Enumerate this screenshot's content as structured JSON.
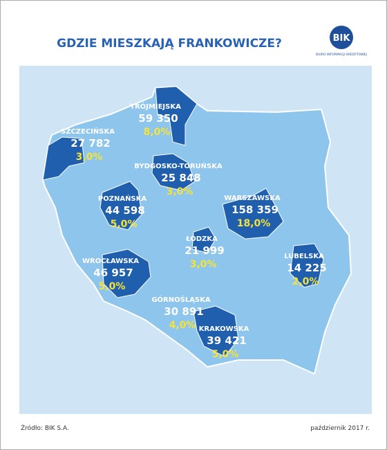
{
  "header": {
    "title": "GDZIE MIESZKAJĄ FRANKOWICZE?",
    "logo": "BIK",
    "logo_subtitle": "BIURO INFORMACJI KREDYTOWEJ"
  },
  "regions": [
    {
      "name": "TRÓJMIEJSKA",
      "count": "59 350",
      "share": "8,0%"
    },
    {
      "name": "SZCZECIŃSKA",
      "count": "27 782",
      "share": "3,0%"
    },
    {
      "name": "BYDGOSKO-TORUŃSKA",
      "count": "25 848",
      "share": "3,0%"
    },
    {
      "name": "POZNAŃSKA",
      "count": "44 598",
      "share": "5,0%"
    },
    {
      "name": "WARSZAWSKA",
      "count": "158 359",
      "share": "18,0%"
    },
    {
      "name": "ŁÓDZKA",
      "count": "21 999",
      "share": "3,0%"
    },
    {
      "name": "LUBELSKA",
      "count": "14 225",
      "share": "2,0%"
    },
    {
      "name": "WROCŁAWSKA",
      "count": "46 957",
      "share": "5,0%"
    },
    {
      "name": "GÓRNOŚLĄSKA",
      "count": "30 891",
      "share": "4,0%"
    },
    {
      "name": "KRAKOWSKA",
      "count": "39 421",
      "share": "5,0%"
    }
  ],
  "footer": {
    "source": "Źródło: BIK S.A.",
    "date": "październik 2017 r."
  }
}
